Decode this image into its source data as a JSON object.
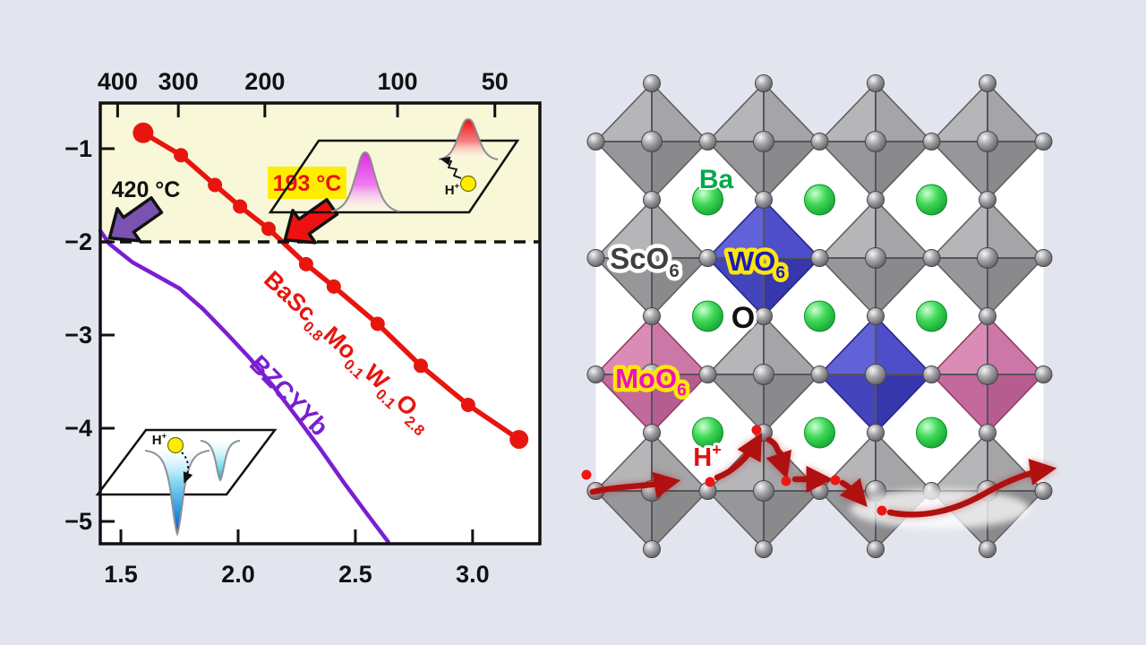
{
  "figure": {
    "background": "#e3e5ee"
  },
  "chart_data": {
    "type": "line",
    "title": "",
    "xlabel": "",
    "ylabel": "",
    "x_range": [
      1.412,
      3.287
    ],
    "y_range": [
      -5.24,
      -0.51
    ],
    "grid": false,
    "plot_bg_upper": "#f8f7d8",
    "plot_bg_lower": "#ffffff",
    "dashed_line_y": -2,
    "top_axis_ticks": [
      {
        "label": "400",
        "x": 1.486
      },
      {
        "label": "300",
        "x": 1.745
      },
      {
        "label": "200",
        "x": 2.114
      },
      {
        "label": "100",
        "x": 2.68
      },
      {
        "label": "50",
        "x": 3.095
      }
    ],
    "bottom_axis_ticks": [
      {
        "label": "1.5",
        "x": 1.5
      },
      {
        "label": "2.0",
        "x": 2.0
      },
      {
        "label": "2.5",
        "x": 2.5
      },
      {
        "label": "3.0",
        "x": 3.0
      }
    ],
    "y_axis_ticks": [
      {
        "label": "−1",
        "y": -1
      },
      {
        "label": "−2",
        "y": -2
      },
      {
        "label": "−3",
        "y": -3
      },
      {
        "label": "−4",
        "y": -4
      },
      {
        "label": "−5",
        "y": -5
      }
    ],
    "series": [
      {
        "name": "BaSc0.8Mo0.1W0.1O2.8",
        "color": "#e8150f",
        "marker": "circle",
        "points": [
          [
            1.595,
            -0.83
          ],
          [
            1.756,
            -1.07
          ],
          [
            1.901,
            -1.39
          ],
          [
            2.008,
            -1.62
          ],
          [
            2.13,
            -1.86
          ],
          [
            2.29,
            -2.24
          ],
          [
            2.408,
            -2.48
          ],
          [
            2.595,
            -2.88
          ],
          [
            2.779,
            -3.33
          ],
          [
            2.981,
            -3.75
          ],
          [
            3.198,
            -4.12
          ]
        ]
      },
      {
        "name": "BZCYYb",
        "color": "#7a1fd0",
        "marker": "none",
        "points": [
          [
            1.412,
            -1.88
          ],
          [
            1.45,
            -2.02
          ],
          [
            1.55,
            -2.22
          ],
          [
            1.65,
            -2.36
          ],
          [
            1.75,
            -2.5
          ],
          [
            1.85,
            -2.72
          ],
          [
            1.95,
            -2.98
          ],
          [
            2.05,
            -3.25
          ],
          [
            2.15,
            -3.55
          ],
          [
            2.25,
            -3.88
          ],
          [
            2.35,
            -4.22
          ],
          [
            2.45,
            -4.58
          ],
          [
            2.55,
            -4.92
          ],
          [
            2.64,
            -5.22
          ]
        ]
      }
    ],
    "annotations": {
      "arrow1_label": "420 °C",
      "arrow2_label": "193 °C",
      "arrow1_color": "#7a52b0",
      "arrow2_color": "#ed1111",
      "highlight_color": "#ffed00",
      "series1_label_parts": [
        {
          "t": "BaSc"
        },
        {
          "s": "0.8"
        },
        {
          "t": "Mo"
        },
        {
          "s": "0.1"
        },
        {
          "t": "W"
        },
        {
          "s": "0.1"
        },
        {
          "t": "O"
        },
        {
          "s": "2.8"
        }
      ],
      "series2_label": "BZCYYb",
      "inset_h_parts": [
        {
          "t": "H"
        },
        {
          "p": "+"
        }
      ]
    }
  },
  "crystal": {
    "labels": {
      "ba": "Ba",
      "o": "O",
      "sco6_parts": [
        {
          "t": "ScO"
        },
        {
          "s": "6"
        }
      ],
      "wo6_parts": [
        {
          "t": "WO"
        },
        {
          "s": "6"
        }
      ],
      "moo6_parts": [
        {
          "t": "MoO"
        },
        {
          "s": "6"
        }
      ],
      "h_parts": [
        {
          "t": "H"
        },
        {
          "p": "+"
        }
      ]
    },
    "octahedra_colors": [
      [
        "gray",
        "gray",
        "gray",
        "gray"
      ],
      [
        "gray",
        "blue",
        "gray",
        "gray"
      ],
      [
        "pink",
        "gray",
        "blue",
        "pink"
      ],
      [
        "gray",
        "gray",
        "gray",
        "gray"
      ]
    ],
    "palette": {
      "gray": {
        "facets": [
          "#b6b6b8",
          "#a5a5a8",
          "#97979a",
          "#8a8a8d"
        ],
        "edge": "#5f5f63"
      },
      "blue": {
        "facets": [
          "#6161d8",
          "#4e4eca",
          "#4444bc",
          "#3737ad"
        ],
        "edge": "#26268a"
      },
      "pink": {
        "facets": [
          "#da8cb6",
          "#cd77a8",
          "#c4699c",
          "#b75c90"
        ],
        "edge": "#8c4068"
      }
    },
    "label_colors": {
      "ba": "#00a94f",
      "sco6": "#3f3f3f",
      "wo6": "#1d1db5",
      "o": "#111111",
      "moo6": "#ee10c4",
      "h": "#e01010"
    },
    "proton_color": "#b01010"
  }
}
